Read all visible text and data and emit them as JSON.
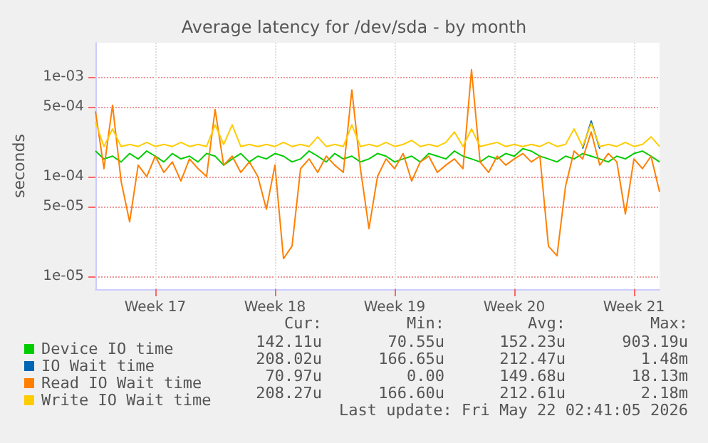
{
  "chart_data": {
    "type": "line",
    "title": "Average latency for /dev/sda - by month",
    "ylabel": "seconds",
    "log": "y",
    "grid": true,
    "legend": "bottom left",
    "marker": "none",
    "line_style": "solid",
    "categories": [
      null,
      null,
      null,
      null,
      null,
      null,
      null,
      "Week 17",
      null,
      null,
      null,
      null,
      null,
      null,
      null,
      null,
      null,
      null,
      null,
      null,
      null,
      "Week 18",
      null,
      null,
      null,
      null,
      null,
      null,
      null,
      null,
      null,
      null,
      null,
      null,
      null,
      "Week 19",
      null,
      null,
      null,
      null,
      null,
      null,
      null,
      null,
      null,
      null,
      null,
      null,
      null,
      "Week 20",
      null,
      null,
      null,
      null,
      null,
      null,
      null,
      null,
      null,
      null,
      null,
      null,
      null,
      "Week 21",
      null,
      null,
      null
    ],
    "ylim": [
      7.4e-06,
      0.0022
    ],
    "yticks": [
      {
        "value": 1e-05,
        "label": "1e-05"
      },
      {
        "value": 5e-05,
        "label": "5e-05"
      },
      {
        "value": 0.0001,
        "label": "1e-04"
      },
      {
        "value": 0.0005,
        "label": "5e-04"
      },
      {
        "value": 0.001,
        "label": "1e-03"
      }
    ],
    "series": [
      {
        "name": "Device IO time",
        "color": "#00cc00",
        "values": [
          0.00018,
          0.00015,
          0.00016,
          0.00014,
          0.00017,
          0.00015,
          0.00018,
          0.00016,
          0.00014,
          0.00017,
          0.00015,
          0.00016,
          0.00014,
          0.00017,
          0.00016,
          0.00013,
          0.00015,
          0.00017,
          0.00014,
          0.00016,
          0.00015,
          0.00017,
          0.00016,
          0.00014,
          0.00015,
          0.00018,
          0.00016,
          0.00014,
          0.00017,
          0.00015,
          0.00016,
          0.00014,
          0.00015,
          0.00017,
          0.00016,
          0.00014,
          0.00015,
          0.00016,
          0.00014,
          0.00017,
          0.00016,
          0.00015,
          0.00018,
          0.00016,
          0.00015,
          0.00014,
          0.00016,
          0.00015,
          0.00017,
          0.00016,
          0.00019,
          0.00018,
          0.00016,
          0.00015,
          0.00014,
          0.00016,
          0.00015,
          0.00017,
          0.00016,
          0.00015,
          0.00014,
          0.00016,
          0.00015,
          0.00017,
          0.00018,
          0.00016,
          0.00014
        ]
      },
      {
        "name": "IO Wait time",
        "color": "#0066b3",
        "values": [
          null,
          null,
          null,
          null,
          null,
          null,
          null,
          null,
          null,
          null,
          null,
          null,
          null,
          null,
          null,
          null,
          null,
          null,
          null,
          null,
          null,
          null,
          null,
          null,
          null,
          null,
          null,
          null,
          null,
          null,
          null,
          null,
          null,
          null,
          null,
          null,
          null,
          null,
          null,
          null,
          null,
          null,
          null,
          null,
          null,
          null,
          null,
          null,
          null,
          null,
          null,
          null,
          null,
          null,
          null,
          null,
          null,
          0.00019,
          0.00036,
          0.00019,
          null,
          null,
          null,
          null,
          null,
          null,
          null
        ]
      },
      {
        "name": "Read IO Wait time",
        "color": "#ff8000",
        "values": [
          0.00045,
          0.00012,
          0.00052,
          9e-05,
          3.5e-05,
          0.00013,
          0.0001,
          0.00016,
          0.00011,
          0.00014,
          9e-05,
          0.00015,
          0.00012,
          0.0001,
          0.00047,
          0.00013,
          0.00016,
          0.00011,
          0.00014,
          0.0001,
          4.7e-05,
          0.00013,
          1.5e-05,
          2e-05,
          0.00012,
          0.00015,
          0.00011,
          0.00016,
          0.00013,
          0.00011,
          0.00074,
          0.00012,
          3e-05,
          0.0001,
          0.00015,
          0.00012,
          0.00017,
          9e-05,
          0.00014,
          0.00016,
          0.00011,
          0.00013,
          0.00015,
          0.00012,
          0.00118,
          0.00014,
          0.00011,
          0.00016,
          0.00013,
          0.00015,
          0.00017,
          0.00014,
          0.00016,
          2e-05,
          1.6e-05,
          8e-05,
          0.00018,
          0.00015,
          0.00028,
          0.00013,
          0.00017,
          0.00014,
          4.2e-05,
          0.00015,
          0.00012,
          0.00016,
          7e-05
        ]
      },
      {
        "name": "Write IO Wait time",
        "color": "#ffcc00",
        "values": [
          0.00035,
          0.0002,
          0.0003,
          0.0002,
          0.00021,
          0.0002,
          0.00022,
          0.0002,
          0.00021,
          0.0002,
          0.00022,
          0.0002,
          0.00021,
          0.0002,
          0.00033,
          0.00021,
          0.00033,
          0.0002,
          0.00021,
          0.0002,
          0.00021,
          0.0002,
          0.00022,
          0.0002,
          0.00021,
          0.0002,
          0.00025,
          0.0002,
          0.00021,
          0.0002,
          0.00033,
          0.0002,
          0.00021,
          0.0002,
          0.00022,
          0.0002,
          0.00021,
          0.00023,
          0.0002,
          0.00021,
          0.0002,
          0.00022,
          0.00028,
          0.0002,
          0.0003,
          0.0002,
          0.00021,
          0.00022,
          0.0002,
          0.00021,
          0.0002,
          0.00021,
          0.0002,
          0.00022,
          0.0002,
          0.00021,
          0.0003,
          0.0002,
          0.00034,
          0.0002,
          0.00021,
          0.0002,
          0.00022,
          0.0002,
          0.00021,
          0.00025,
          0.0002
        ]
      }
    ],
    "annotations": [
      "Cur:",
      "Min:",
      "Avg:",
      "Max:",
      "142.11u",
      "70.55u",
      "152.23u",
      "903.19u",
      "208.02u",
      "166.65u",
      "212.47u",
      "1.48m",
      "70.97u",
      "0.00",
      "149.68u",
      "18.13m",
      "208.27u",
      "166.60u",
      "212.61u",
      "2.18m",
      "Last update: Fri May 22 02:41:05 2026"
    ]
  }
}
